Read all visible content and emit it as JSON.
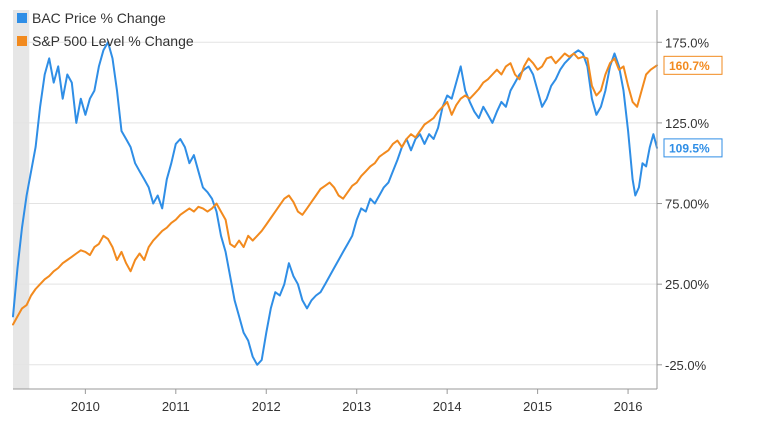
{
  "chart_data": {
    "type": "line",
    "x_start": 2009.2,
    "x_end": 2016.32,
    "xlim": [
      2009.2,
      2016.32
    ],
    "ylim": [
      -40,
      195
    ],
    "x_ticks": [
      {
        "value": 2010,
        "label": "2010"
      },
      {
        "value": 2011,
        "label": "2011"
      },
      {
        "value": 2012,
        "label": "2012"
      },
      {
        "value": 2013,
        "label": "2013"
      },
      {
        "value": 2014,
        "label": "2014"
      },
      {
        "value": 2015,
        "label": "2015"
      },
      {
        "value": 2016,
        "label": "2016"
      }
    ],
    "y_ticks": [
      {
        "value": 175,
        "label": "175.0%"
      },
      {
        "value": 125,
        "label": "125.0%"
      },
      {
        "value": 75,
        "label": "75.00%"
      },
      {
        "value": 25,
        "label": "25.00%"
      },
      {
        "value": -25,
        "label": "-25.0%"
      }
    ],
    "grid": {
      "horizontal": true,
      "vertical": false
    },
    "legend_position": "top-left",
    "shaded_region": [
      2009.2,
      2009.38
    ],
    "series": [
      {
        "name": "BAC Price % Change",
        "color": "#2f8ee6",
        "end_label": "109.5%",
        "points": [
          [
            2009.2,
            5
          ],
          [
            2009.25,
            35
          ],
          [
            2009.3,
            60
          ],
          [
            2009.35,
            80
          ],
          [
            2009.4,
            95
          ],
          [
            2009.45,
            110
          ],
          [
            2009.5,
            135
          ],
          [
            2009.55,
            155
          ],
          [
            2009.6,
            165
          ],
          [
            2009.65,
            150
          ],
          [
            2009.7,
            160
          ],
          [
            2009.75,
            140
          ],
          [
            2009.8,
            155
          ],
          [
            2009.85,
            150
          ],
          [
            2009.9,
            125
          ],
          [
            2009.95,
            140
          ],
          [
            2010.0,
            130
          ],
          [
            2010.05,
            140
          ],
          [
            2010.1,
            145
          ],
          [
            2010.15,
            160
          ],
          [
            2010.2,
            170
          ],
          [
            2010.25,
            175
          ],
          [
            2010.3,
            165
          ],
          [
            2010.35,
            145
          ],
          [
            2010.4,
            120
          ],
          [
            2010.45,
            115
          ],
          [
            2010.5,
            110
          ],
          [
            2010.55,
            100
          ],
          [
            2010.6,
            95
          ],
          [
            2010.65,
            90
          ],
          [
            2010.7,
            85
          ],
          [
            2010.75,
            75
          ],
          [
            2010.8,
            80
          ],
          [
            2010.85,
            72
          ],
          [
            2010.9,
            90
          ],
          [
            2010.95,
            100
          ],
          [
            2011.0,
            112
          ],
          [
            2011.05,
            115
          ],
          [
            2011.1,
            110
          ],
          [
            2011.15,
            100
          ],
          [
            2011.2,
            105
          ],
          [
            2011.25,
            95
          ],
          [
            2011.3,
            85
          ],
          [
            2011.35,
            82
          ],
          [
            2011.4,
            78
          ],
          [
            2011.45,
            70
          ],
          [
            2011.5,
            55
          ],
          [
            2011.55,
            45
          ],
          [
            2011.6,
            30
          ],
          [
            2011.65,
            15
          ],
          [
            2011.7,
            5
          ],
          [
            2011.75,
            -5
          ],
          [
            2011.8,
            -10
          ],
          [
            2011.85,
            -20
          ],
          [
            2011.9,
            -25
          ],
          [
            2011.95,
            -22
          ],
          [
            2012.0,
            -5
          ],
          [
            2012.05,
            10
          ],
          [
            2012.1,
            20
          ],
          [
            2012.15,
            18
          ],
          [
            2012.2,
            25
          ],
          [
            2012.25,
            38
          ],
          [
            2012.3,
            30
          ],
          [
            2012.35,
            25
          ],
          [
            2012.4,
            15
          ],
          [
            2012.45,
            10
          ],
          [
            2012.5,
            15
          ],
          [
            2012.55,
            18
          ],
          [
            2012.6,
            20
          ],
          [
            2012.65,
            25
          ],
          [
            2012.7,
            30
          ],
          [
            2012.75,
            35
          ],
          [
            2012.8,
            40
          ],
          [
            2012.85,
            45
          ],
          [
            2012.9,
            50
          ],
          [
            2012.95,
            55
          ],
          [
            2013.0,
            65
          ],
          [
            2013.05,
            72
          ],
          [
            2013.1,
            70
          ],
          [
            2013.15,
            78
          ],
          [
            2013.2,
            75
          ],
          [
            2013.25,
            80
          ],
          [
            2013.3,
            85
          ],
          [
            2013.35,
            88
          ],
          [
            2013.4,
            95
          ],
          [
            2013.45,
            102
          ],
          [
            2013.5,
            110
          ],
          [
            2013.55,
            115
          ],
          [
            2013.6,
            108
          ],
          [
            2013.65,
            115
          ],
          [
            2013.7,
            118
          ],
          [
            2013.75,
            112
          ],
          [
            2013.8,
            118
          ],
          [
            2013.85,
            115
          ],
          [
            2013.9,
            122
          ],
          [
            2013.95,
            135
          ],
          [
            2014.0,
            142
          ],
          [
            2014.05,
            140
          ],
          [
            2014.1,
            150
          ],
          [
            2014.15,
            160
          ],
          [
            2014.2,
            145
          ],
          [
            2014.25,
            138
          ],
          [
            2014.3,
            132
          ],
          [
            2014.35,
            128
          ],
          [
            2014.4,
            135
          ],
          [
            2014.45,
            130
          ],
          [
            2014.5,
            125
          ],
          [
            2014.55,
            132
          ],
          [
            2014.6,
            138
          ],
          [
            2014.65,
            135
          ],
          [
            2014.7,
            145
          ],
          [
            2014.75,
            150
          ],
          [
            2014.8,
            155
          ],
          [
            2014.85,
            158
          ],
          [
            2014.9,
            160
          ],
          [
            2014.95,
            155
          ],
          [
            2015.0,
            145
          ],
          [
            2015.05,
            135
          ],
          [
            2015.1,
            140
          ],
          [
            2015.15,
            148
          ],
          [
            2015.2,
            152
          ],
          [
            2015.25,
            158
          ],
          [
            2015.3,
            162
          ],
          [
            2015.35,
            165
          ],
          [
            2015.4,
            168
          ],
          [
            2015.45,
            170
          ],
          [
            2015.5,
            168
          ],
          [
            2015.55,
            160
          ],
          [
            2015.6,
            140
          ],
          [
            2015.65,
            130
          ],
          [
            2015.7,
            135
          ],
          [
            2015.75,
            145
          ],
          [
            2015.8,
            160
          ],
          [
            2015.85,
            168
          ],
          [
            2015.9,
            160
          ],
          [
            2015.95,
            145
          ],
          [
            2016.0,
            120
          ],
          [
            2016.05,
            90
          ],
          [
            2016.08,
            80
          ],
          [
            2016.12,
            85
          ],
          [
            2016.16,
            100
          ],
          [
            2016.2,
            98
          ],
          [
            2016.24,
            110
          ],
          [
            2016.28,
            118
          ],
          [
            2016.32,
            109.5
          ]
        ]
      },
      {
        "name": "S&P 500 Level % Change",
        "color": "#f28a1e",
        "end_label": "160.7%",
        "points": [
          [
            2009.2,
            0
          ],
          [
            2009.25,
            5
          ],
          [
            2009.3,
            10
          ],
          [
            2009.35,
            12
          ],
          [
            2009.4,
            18
          ],
          [
            2009.45,
            22
          ],
          [
            2009.5,
            25
          ],
          [
            2009.55,
            28
          ],
          [
            2009.6,
            30
          ],
          [
            2009.65,
            33
          ],
          [
            2009.7,
            35
          ],
          [
            2009.75,
            38
          ],
          [
            2009.8,
            40
          ],
          [
            2009.85,
            42
          ],
          [
            2009.9,
            44
          ],
          [
            2009.95,
            46
          ],
          [
            2010.0,
            45
          ],
          [
            2010.05,
            43
          ],
          [
            2010.1,
            48
          ],
          [
            2010.15,
            50
          ],
          [
            2010.2,
            55
          ],
          [
            2010.25,
            53
          ],
          [
            2010.3,
            48
          ],
          [
            2010.35,
            40
          ],
          [
            2010.4,
            45
          ],
          [
            2010.45,
            38
          ],
          [
            2010.5,
            33
          ],
          [
            2010.55,
            40
          ],
          [
            2010.6,
            44
          ],
          [
            2010.65,
            40
          ],
          [
            2010.7,
            48
          ],
          [
            2010.75,
            52
          ],
          [
            2010.8,
            55
          ],
          [
            2010.85,
            58
          ],
          [
            2010.9,
            60
          ],
          [
            2010.95,
            63
          ],
          [
            2011.0,
            65
          ],
          [
            2011.05,
            68
          ],
          [
            2011.1,
            70
          ],
          [
            2011.15,
            72
          ],
          [
            2011.2,
            70
          ],
          [
            2011.25,
            73
          ],
          [
            2011.3,
            72
          ],
          [
            2011.35,
            70
          ],
          [
            2011.4,
            72
          ],
          [
            2011.45,
            75
          ],
          [
            2011.5,
            70
          ],
          [
            2011.55,
            65
          ],
          [
            2011.6,
            50
          ],
          [
            2011.65,
            48
          ],
          [
            2011.7,
            52
          ],
          [
            2011.75,
            48
          ],
          [
            2011.8,
            55
          ],
          [
            2011.85,
            52
          ],
          [
            2011.9,
            55
          ],
          [
            2011.95,
            58
          ],
          [
            2012.0,
            62
          ],
          [
            2012.05,
            66
          ],
          [
            2012.1,
            70
          ],
          [
            2012.15,
            74
          ],
          [
            2012.2,
            78
          ],
          [
            2012.25,
            80
          ],
          [
            2012.3,
            76
          ],
          [
            2012.35,
            70
          ],
          [
            2012.4,
            68
          ],
          [
            2012.45,
            72
          ],
          [
            2012.5,
            76
          ],
          [
            2012.55,
            80
          ],
          [
            2012.6,
            84
          ],
          [
            2012.65,
            86
          ],
          [
            2012.7,
            88
          ],
          [
            2012.75,
            85
          ],
          [
            2012.8,
            80
          ],
          [
            2012.85,
            78
          ],
          [
            2012.9,
            82
          ],
          [
            2012.95,
            86
          ],
          [
            2013.0,
            88
          ],
          [
            2013.05,
            92
          ],
          [
            2013.1,
            95
          ],
          [
            2013.15,
            98
          ],
          [
            2013.2,
            100
          ],
          [
            2013.25,
            104
          ],
          [
            2013.3,
            106
          ],
          [
            2013.35,
            108
          ],
          [
            2013.4,
            112
          ],
          [
            2013.45,
            114
          ],
          [
            2013.5,
            110
          ],
          [
            2013.55,
            115
          ],
          [
            2013.6,
            118
          ],
          [
            2013.65,
            116
          ],
          [
            2013.7,
            120
          ],
          [
            2013.75,
            124
          ],
          [
            2013.8,
            126
          ],
          [
            2013.85,
            128
          ],
          [
            2013.9,
            132
          ],
          [
            2013.95,
            135
          ],
          [
            2014.0,
            138
          ],
          [
            2014.05,
            130
          ],
          [
            2014.1,
            136
          ],
          [
            2014.15,
            140
          ],
          [
            2014.2,
            142
          ],
          [
            2014.25,
            140
          ],
          [
            2014.3,
            143
          ],
          [
            2014.35,
            146
          ],
          [
            2014.4,
            150
          ],
          [
            2014.45,
            152
          ],
          [
            2014.5,
            155
          ],
          [
            2014.55,
            158
          ],
          [
            2014.6,
            155
          ],
          [
            2014.65,
            160
          ],
          [
            2014.7,
            162
          ],
          [
            2014.75,
            155
          ],
          [
            2014.8,
            152
          ],
          [
            2014.85,
            160
          ],
          [
            2014.9,
            165
          ],
          [
            2014.95,
            162
          ],
          [
            2015.0,
            158
          ],
          [
            2015.05,
            160
          ],
          [
            2015.1,
            165
          ],
          [
            2015.15,
            166
          ],
          [
            2015.2,
            162
          ],
          [
            2015.25,
            165
          ],
          [
            2015.3,
            168
          ],
          [
            2015.35,
            166
          ],
          [
            2015.4,
            168
          ],
          [
            2015.45,
            165
          ],
          [
            2015.5,
            166
          ],
          [
            2015.55,
            165
          ],
          [
            2015.6,
            148
          ],
          [
            2015.65,
            142
          ],
          [
            2015.7,
            145
          ],
          [
            2015.75,
            155
          ],
          [
            2015.8,
            162
          ],
          [
            2015.85,
            165
          ],
          [
            2015.9,
            158
          ],
          [
            2015.95,
            160
          ],
          [
            2016.0,
            148
          ],
          [
            2016.05,
            138
          ],
          [
            2016.1,
            135
          ],
          [
            2016.15,
            145
          ],
          [
            2016.2,
            155
          ],
          [
            2016.25,
            158
          ],
          [
            2016.32,
            160.7
          ]
        ]
      }
    ]
  }
}
